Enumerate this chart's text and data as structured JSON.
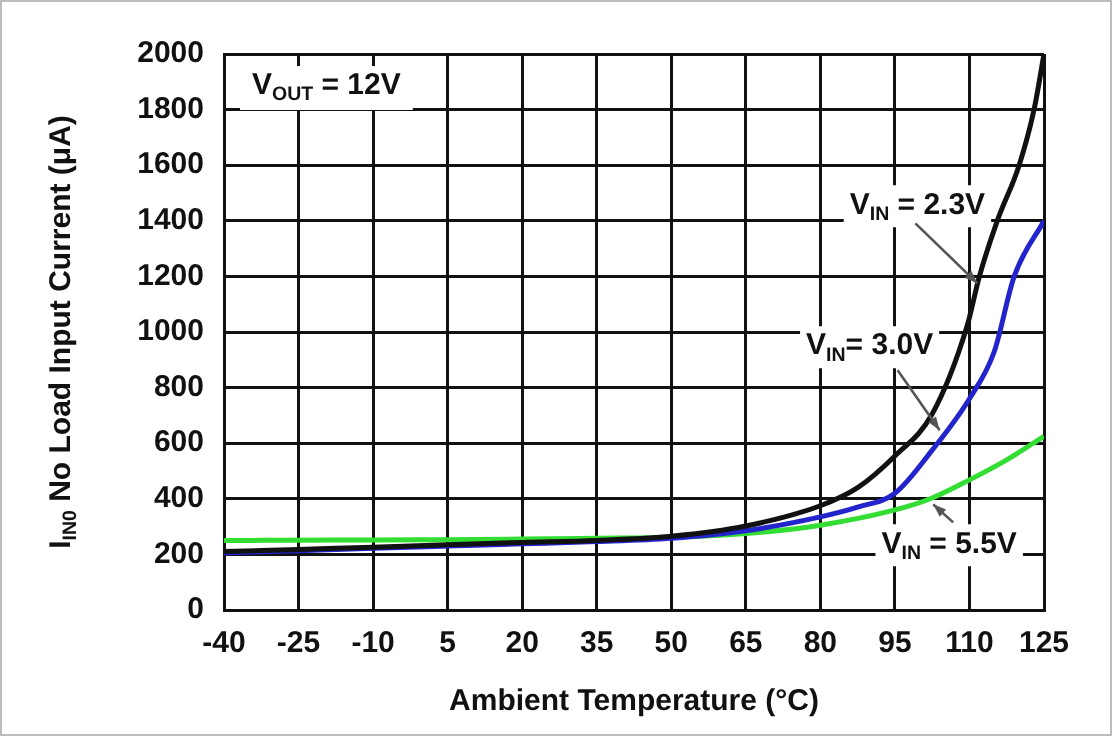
{
  "chart_data": {
    "type": "line",
    "xlabel": "Ambient Temperature (°C)",
    "ylabel": "I$_{IN0}$ No Load Input Current (μA)",
    "xlim": [
      -40,
      125
    ],
    "xticks": [
      -40,
      -25,
      -10,
      5,
      20,
      35,
      50,
      65,
      80,
      95,
      110,
      125
    ],
    "ylim": [
      0,
      2000
    ],
    "yticks": [
      0,
      200,
      400,
      600,
      800,
      1000,
      1200,
      1400,
      1600,
      1800,
      2000
    ],
    "grid": true,
    "legend": false,
    "marker": "none",
    "line_style": "solid",
    "series": [
      {
        "color": "#111111",
        "x": [
          -40,
          -25,
          -10,
          5,
          20,
          35,
          50,
          65,
          80,
          87.5,
          95,
          102.5,
          109.5,
          112,
          115.6,
          120,
          123,
          125
        ],
        "values": [
          210,
          218,
          226,
          235,
          243,
          250,
          265,
          302,
          375,
          440,
          554,
          705,
          1020,
          1200,
          1400,
          1600,
          1800,
          2000
        ]
      },
      {
        "color": "#2424cc",
        "x": [
          -40,
          -25,
          -10,
          5,
          20,
          35,
          50,
          65,
          80,
          87.5,
          95,
          102.5,
          110,
          115,
          119,
          125
        ],
        "values": [
          205,
          213,
          222,
          230,
          238,
          246,
          258,
          285,
          335,
          370,
          420,
          575,
          760,
          930,
          1200,
          1400
        ]
      },
      {
        "color": "#33dd33",
        "x": [
          -40,
          -25,
          -10,
          5,
          20,
          35,
          50,
          65,
          80,
          95,
          102.5,
          110,
          117.5,
          125
        ],
        "values": [
          250,
          251,
          252,
          253,
          255,
          258,
          262,
          275,
          305,
          360,
          403,
          468,
          540,
          625
        ]
      }
    ],
    "annotations": [
      "V$_{OUT}$ = 12V",
      {
        "text": "V$_{IN}$ = 2.3V",
        "x": 111.6,
        "y": 1175
      },
      {
        "text": "V$_{IN}$= 3.0V",
        "x": 104,
        "y": 647
      },
      {
        "text": "V$_{IN}$ = 5.5V",
        "x": 102.7,
        "y": 380
      }
    ]
  }
}
